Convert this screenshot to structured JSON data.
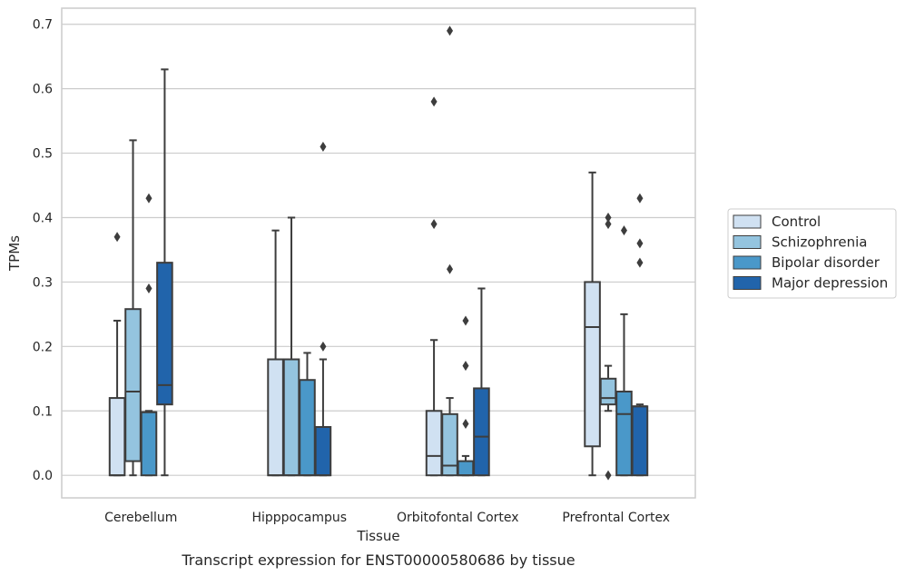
{
  "chart_data": {
    "type": "box",
    "caption": "Transcript expression for ENST00000580686 by tissue",
    "xlabel": "Tissue",
    "ylabel": "TPMs",
    "ylim": [
      -0.035,
      0.725
    ],
    "yticks": [
      0.0,
      0.1,
      0.2,
      0.3,
      0.4,
      0.5,
      0.6,
      0.7
    ],
    "ytick_labels": [
      "0.0",
      "0.1",
      "0.2",
      "0.3",
      "0.4",
      "0.5",
      "0.6",
      "0.7"
    ],
    "grid": "horizontal",
    "legend_position": "right",
    "categories": [
      "Cerebellum",
      "Hipppocampus",
      "Orbitofontal Cortex",
      "Prefrontal Cortex"
    ],
    "series": [
      {
        "name": "Control",
        "color": "#d0e1f2",
        "boxes": [
          {
            "min": 0.0,
            "q1": 0.0,
            "median": 0.0,
            "q3": 0.12,
            "max": 0.24,
            "outliers": [
              0.37
            ]
          },
          {
            "min": 0.0,
            "q1": 0.0,
            "median": 0.0,
            "q3": 0.18,
            "max": 0.38,
            "outliers": []
          },
          {
            "min": 0.0,
            "q1": 0.0,
            "median": 0.03,
            "q3": 0.1,
            "max": 0.21,
            "outliers": [
              0.39,
              0.58
            ]
          },
          {
            "min": 0.0,
            "q1": 0.045,
            "median": 0.23,
            "q3": 0.3,
            "max": 0.47,
            "outliers": []
          }
        ]
      },
      {
        "name": "Schizophrenia",
        "color": "#94c4df",
        "boxes": [
          {
            "min": 0.0,
            "q1": 0.022,
            "median": 0.13,
            "q3": 0.258,
            "max": 0.52,
            "outliers": []
          },
          {
            "min": 0.0,
            "q1": 0.0,
            "median": 0.0,
            "q3": 0.18,
            "max": 0.4,
            "outliers": []
          },
          {
            "min": 0.0,
            "q1": 0.0,
            "median": 0.015,
            "q3": 0.095,
            "max": 0.12,
            "outliers": [
              0.32,
              0.69
            ]
          },
          {
            "min": 0.1,
            "q1": 0.11,
            "median": 0.12,
            "q3": 0.15,
            "max": 0.17,
            "outliers": [
              0.0,
              0.39,
              0.4
            ]
          }
        ]
      },
      {
        "name": "Bipolar disorder",
        "color": "#4a98c9",
        "boxes": [
          {
            "min": 0.0,
            "q1": 0.0,
            "median": 0.098,
            "q3": 0.098,
            "max": 0.1,
            "outliers": [
              0.29,
              0.43
            ]
          },
          {
            "min": 0.0,
            "q1": 0.0,
            "median": 0.0,
            "q3": 0.148,
            "max": 0.19,
            "outliers": []
          },
          {
            "min": 0.0,
            "q1": 0.0,
            "median": 0.0,
            "q3": 0.022,
            "max": 0.03,
            "outliers": [
              0.08,
              0.17,
              0.24
            ]
          },
          {
            "min": 0.0,
            "q1": 0.0,
            "median": 0.095,
            "q3": 0.13,
            "max": 0.25,
            "outliers": [
              0.38
            ]
          }
        ]
      },
      {
        "name": "Major depression",
        "color": "#2164ab",
        "boxes": [
          {
            "min": 0.0,
            "q1": 0.11,
            "median": 0.14,
            "q3": 0.33,
            "max": 0.63,
            "outliers": []
          },
          {
            "min": 0.0,
            "q1": 0.0,
            "median": 0.0,
            "q3": 0.075,
            "max": 0.18,
            "outliers": [
              0.2,
              0.51
            ]
          },
          {
            "min": 0.0,
            "q1": 0.0,
            "median": 0.06,
            "q3": 0.135,
            "max": 0.29,
            "outliers": []
          },
          {
            "min": 0.0,
            "q1": 0.0,
            "median": 0.107,
            "q3": 0.107,
            "max": 0.11,
            "outliers": [
              0.33,
              0.36,
              0.43
            ]
          }
        ]
      }
    ]
  }
}
